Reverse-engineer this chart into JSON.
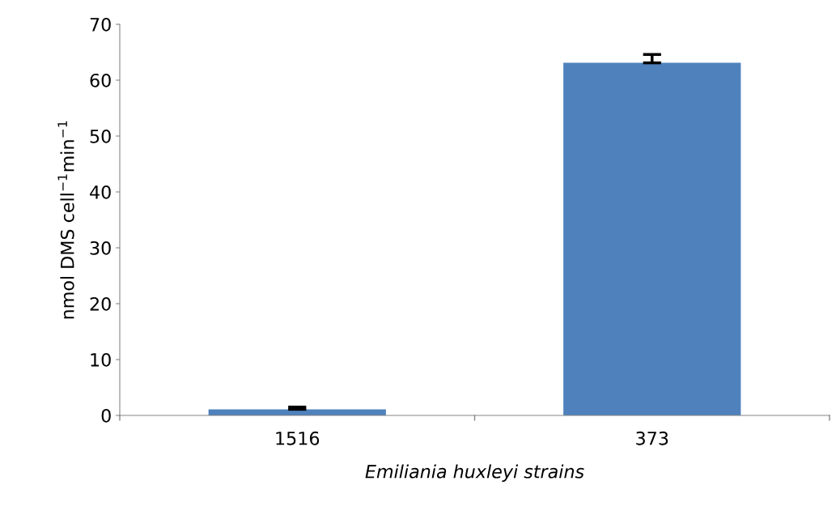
{
  "chart_data": {
    "type": "bar",
    "xlabel": "Emiliania huxleyi strains",
    "ylabel": "nmol DMS cell$^{−1}$min$^{−1}$",
    "categories": [
      "1516",
      "373"
    ],
    "values": [
      1.1,
      63.1
    ],
    "errors": [
      [
        1.1,
        1.5
      ],
      [
        63.1,
        64.6
      ]
    ],
    "color": "#4f81bd",
    "ylim": [
      0,
      70
    ],
    "yticks": [
      0,
      10,
      20,
      30,
      40,
      50,
      60,
      70
    ],
    "grid": false
  }
}
